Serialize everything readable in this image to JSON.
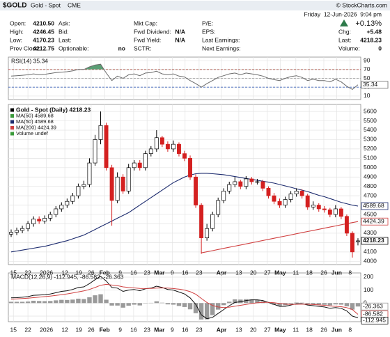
{
  "header": {
    "symbol": "$GOLD",
    "name": "Gold - Spot",
    "exchange": "CME",
    "copyright": "© StockCharts.com",
    "date": "Friday  12-Jun-2026  9:04 pm",
    "change_pct": "+0.13%",
    "columns": [
      [
        [
          "Open:",
          "4210.50"
        ],
        [
          "High:",
          "4246.45"
        ],
        [
          "Low:",
          "4170.23"
        ],
        [
          "Prev Close:",
          "4212.75"
        ]
      ],
      [
        [
          "Ask:"
        ],
        [
          "Bid:"
        ],
        [
          "Last:"
        ],
        [
          "Optionable:",
          "no"
        ]
      ],
      [
        [
          "Mkt Cap:"
        ],
        [
          "Fwd Dividend:",
          "N/A"
        ],
        [
          "Fwd Yield:",
          "N/A"
        ],
        [
          "SCTR:"
        ]
      ],
      [
        [
          "P/E:"
        ],
        [
          "EPS:"
        ],
        [
          "Last Earnings:"
        ],
        [
          "Next Earnings:"
        ]
      ]
    ],
    "quote": [
      [
        "Chg:",
        "+5.48"
      ],
      [
        "Last:",
        "4218.23"
      ],
      [
        "Volume:",
        "0"
      ]
    ]
  },
  "chart_data": [
    {
      "type": "line",
      "title": "RSI(14) 35.34",
      "ylim": [
        2,
        98
      ],
      "yticks": [
        90,
        70,
        50,
        30,
        10
      ],
      "grid": true,
      "fill_color": "#5a9e74",
      "reference_lines": [
        {
          "value": 70,
          "color": "#c24a4a"
        },
        {
          "value": 50,
          "color": "#999999"
        },
        {
          "value": 30,
          "color": "#3a62b8"
        }
      ],
      "series": [
        {
          "color": "#6a6a6a",
          "values": [
            55,
            56,
            57,
            58,
            60,
            58,
            59,
            61,
            63,
            64,
            65,
            67,
            70,
            70,
            76,
            80,
            82,
            62,
            45,
            55,
            50,
            58,
            60,
            56,
            62,
            63,
            66,
            60,
            58,
            60,
            55,
            53,
            45,
            38,
            30,
            38,
            45,
            52,
            56,
            60,
            62,
            58,
            62,
            60,
            58,
            55,
            50,
            47,
            45,
            50,
            54,
            56,
            52,
            45,
            48,
            45,
            45,
            42,
            48,
            42,
            32,
            25,
            35.34
          ]
        }
      ]
    },
    {
      "type": "candlestick",
      "xlim": [
        -0.5,
        62.5
      ],
      "ylim": [
        3965,
        5675
      ],
      "grid": true,
      "yticks": [
        4000,
        4100,
        4200,
        4300,
        4400,
        4500,
        4600,
        4700,
        4800,
        4900,
        5000,
        5100,
        5200,
        5300,
        5400,
        5500,
        5600
      ],
      "xticks": [
        {
          "value": 0.4,
          "label": "15"
        },
        {
          "value": 3.0,
          "label": "22"
        },
        {
          "value": 6.3,
          "label": "2026"
        },
        {
          "value": 9.6,
          "label": "12"
        },
        {
          "value": 12.1,
          "label": "19"
        },
        {
          "value": 14.3,
          "label": "26"
        },
        {
          "value": 16.7,
          "label": "Feb"
        },
        {
          "value": 19.5,
          "label": "9"
        },
        {
          "value": 21.9,
          "label": "16"
        },
        {
          "value": 24.3,
          "label": "23"
        },
        {
          "value": 26.5,
          "label": "Mar"
        },
        {
          "value": 28.8,
          "label": "9"
        },
        {
          "value": 31.1,
          "label": "16"
        },
        {
          "value": 33.6,
          "label": "23"
        },
        {
          "value": 37.6,
          "label": "Apr"
        },
        {
          "value": 40.7,
          "label": "13"
        },
        {
          "value": 43.3,
          "label": "20"
        },
        {
          "value": 45.8,
          "label": "27"
        },
        {
          "value": 48.1,
          "label": "May"
        },
        {
          "value": 50.9,
          "label": "11"
        },
        {
          "value": 53.3,
          "label": "18"
        },
        {
          "value": 55.9,
          "label": "26"
        },
        {
          "value": 58.2,
          "label": "Jun"
        },
        {
          "value": 60.6,
          "label": "8"
        }
      ],
      "legend": [
        {
          "name": "Gold - Spot (Daily) 4218.23",
          "color": "#000000"
        },
        {
          "name": "MA(50) 4589.68",
          "color": "#3a9a3a"
        },
        {
          "name": "MA(50) 4589.68",
          "color": "#1c2b6e"
        },
        {
          "name": "MA(200) 4424.39",
          "color": "#d04040"
        },
        {
          "name": "Volume undef",
          "color": "#3a9a3a"
        }
      ],
      "up_color": "#ffffff",
      "down_color": "#d42020",
      "open": [
        4290,
        4310,
        4330,
        4350,
        4400,
        4450,
        4430,
        4460,
        4500,
        4560,
        4600,
        4640,
        4700,
        4800,
        4820,
        5050,
        5300,
        5450,
        5000,
        4650,
        4900,
        4750,
        5000,
        5050,
        5000,
        5150,
        5200,
        5320,
        5250,
        5200,
        5250,
        5150,
        5100,
        4900,
        4600,
        4250,
        4350,
        4500,
        4650,
        4750,
        4820,
        4850,
        4800,
        4880,
        4850,
        4850,
        4780,
        4700,
        4640,
        4600,
        4660,
        4720,
        4750,
        4700,
        4580,
        4600,
        4560,
        4550,
        4500,
        4560,
        4480,
        4300,
        4210.5
      ],
      "high": [
        4340,
        4360,
        4380,
        4430,
        4480,
        4480,
        4490,
        4530,
        4590,
        4630,
        4670,
        4730,
        4830,
        4860,
        5100,
        5350,
        5600,
        5480,
        5030,
        4950,
        4930,
        5040,
        5080,
        5080,
        5180,
        5230,
        5400,
        5340,
        5280,
        5290,
        5270,
        5180,
        5130,
        4930,
        4620,
        4400,
        4530,
        4680,
        4780,
        4850,
        4900,
        4870,
        4910,
        4900,
        4880,
        4870,
        4800,
        4730,
        4670,
        4690,
        4750,
        4780,
        4770,
        4720,
        4640,
        4620,
        4590,
        4570,
        4600,
        4580,
        4500,
        4320,
        4246.45
      ],
      "low": [
        4260,
        4280,
        4300,
        4320,
        4370,
        4400,
        4400,
        4430,
        4470,
        4530,
        4570,
        4610,
        4670,
        4770,
        4790,
        5020,
        5250,
        4970,
        4380,
        4620,
        4720,
        4720,
        4970,
        4970,
        4970,
        5120,
        5170,
        5220,
        5170,
        5170,
        5120,
        5070,
        4870,
        4570,
        4080,
        4220,
        4320,
        4470,
        4620,
        4720,
        4790,
        4770,
        4770,
        4820,
        4820,
        4750,
        4670,
        4610,
        4570,
        4570,
        4630,
        4690,
        4670,
        4550,
        4550,
        4530,
        4520,
        4470,
        4470,
        4450,
        4270,
        4040,
        4170.23
      ],
      "close": [
        4310,
        4330,
        4350,
        4400,
        4450,
        4430,
        4460,
        4500,
        4560,
        4600,
        4640,
        4700,
        4800,
        4820,
        5050,
        5300,
        5450,
        5000,
        4650,
        4900,
        4750,
        5000,
        5050,
        5000,
        5150,
        5200,
        5320,
        5250,
        5200,
        5250,
        5150,
        5100,
        4900,
        4600,
        4250,
        4350,
        4500,
        4650,
        4750,
        4820,
        4850,
        4800,
        4880,
        4850,
        4850,
        4780,
        4700,
        4640,
        4600,
        4660,
        4720,
        4750,
        4700,
        4580,
        4600,
        4560,
        4550,
        4500,
        4560,
        4480,
        4300,
        4100,
        4218.23
      ],
      "lines": [
        {
          "color": "#1c2b6e",
          "values": [
            4100,
            4110,
            4120,
            4130,
            4140,
            4150,
            4160,
            4175,
            4190,
            4205,
            4220,
            4240,
            4260,
            4280,
            4310,
            4340,
            4370,
            4400,
            4430,
            4460,
            4490,
            4520,
            4560,
            4600,
            4640,
            4680,
            4720,
            4760,
            4800,
            4840,
            4870,
            4900,
            4920,
            4935,
            4940,
            4940,
            4935,
            4930,
            4925,
            4915,
            4905,
            4895,
            4885,
            4875,
            4865,
            4855,
            4845,
            4835,
            4820,
            4805,
            4790,
            4775,
            4760,
            4745,
            4725,
            4705,
            4690,
            4670,
            4650,
            4630,
            4615,
            4600,
            4589.68
          ]
        },
        {
          "color": "#d04040",
          "values": [
            null,
            null,
            null,
            null,
            null,
            null,
            null,
            null,
            null,
            null,
            null,
            null,
            null,
            null,
            null,
            null,
            null,
            null,
            null,
            null,
            null,
            null,
            null,
            null,
            null,
            null,
            null,
            null,
            null,
            null,
            null,
            null,
            null,
            null,
            4090,
            4102,
            4114,
            4126,
            4138,
            4150,
            4162,
            4174,
            4186,
            4198,
            4210,
            4222,
            4234,
            4246,
            4258,
            4270,
            4282,
            4294,
            4306,
            4318,
            4330,
            4342,
            4354,
            4366,
            4378,
            4390,
            4402,
            4413,
            4424.39
          ]
        }
      ]
    },
    {
      "type": "macd",
      "title": "MACD(12,26,9) -112.945, -86.582, -26.363",
      "xlim": [
        -0.5,
        62.5
      ],
      "ylim": [
        -143,
        232
      ],
      "yticks": [
        200,
        100,
        0,
        -100
      ],
      "grid": true,
      "xticks": [
        {
          "value": 0.4,
          "label": "15"
        },
        {
          "value": 3.0,
          "label": "22"
        },
        {
          "value": 6.3,
          "label": "2026"
        },
        {
          "value": 9.6,
          "label": "12"
        },
        {
          "value": 12.1,
          "label": "19"
        },
        {
          "value": 14.3,
          "label": "26"
        },
        {
          "value": 16.7,
          "label": "Feb"
        },
        {
          "value": 19.5,
          "label": "9"
        },
        {
          "value": 21.9,
          "label": "16"
        },
        {
          "value": 24.3,
          "label": "23"
        },
        {
          "value": 26.5,
          "label": "Mar"
        },
        {
          "value": 28.8,
          "label": "9"
        },
        {
          "value": 31.1,
          "label": "16"
        },
        {
          "value": 33.6,
          "label": "23"
        },
        {
          "value": 37.6,
          "label": "Apr"
        },
        {
          "value": 40.7,
          "label": "13"
        },
        {
          "value": 43.3,
          "label": "20"
        },
        {
          "value": 45.8,
          "label": "27"
        },
        {
          "value": 48.1,
          "label": "May"
        },
        {
          "value": 50.9,
          "label": "11"
        },
        {
          "value": 53.3,
          "label": "18"
        },
        {
          "value": 55.9,
          "label": "26"
        },
        {
          "value": 58.2,
          "label": "Jun"
        },
        {
          "value": 60.6,
          "label": "8"
        }
      ],
      "series": [
        {
          "kind": "bar",
          "color": "#9a9a9a",
          "values": [
            10,
            10,
            10,
            12,
            18,
            16,
            15,
            16,
            21,
            25,
            24,
            27,
            34,
            31,
            45,
            60,
            68,
            26,
            -19,
            -19,
            -35,
            -20,
            -12,
            -18,
            -2,
            2,
            14,
            3,
            -10,
            -12,
            -22,
            -30,
            -48,
            -78,
            -126,
            -125,
            -92,
            -50,
            -16,
            11,
            29,
            27,
            30,
            28,
            23,
            14,
            -1,
            -13,
            -22,
            -17,
            -5,
            4,
            3,
            -6,
            -9,
            -11,
            -13,
            -18,
            -10,
            -12,
            -25,
            -50,
            -26.363
          ]
        },
        {
          "kind": "line",
          "color": "#111111",
          "values": [
            40,
            42,
            45,
            50,
            60,
            62,
            65,
            70,
            80,
            90,
            95,
            105,
            120,
            125,
            150,
            180,
            205,
            170,
            120,
            115,
            90,
            100,
            105,
            95,
            110,
            115,
            130,
            120,
            105,
            100,
            85,
            70,
            40,
            -10,
            -90,
            -120,
            -110,
            -80,
            -50,
            -20,
            5,
            10,
            20,
            25,
            25,
            20,
            5,
            -10,
            -25,
            -25,
            -15,
            -5,
            -5,
            -15,
            -20,
            -25,
            -30,
            -40,
            -35,
            -40,
            -60,
            -100,
            -112.945
          ]
        },
        {
          "kind": "line",
          "color": "#d04040",
          "values": [
            30,
            32,
            35,
            38,
            42,
            46,
            50,
            54,
            59,
            65,
            71,
            78,
            86,
            94,
            105,
            120,
            137,
            144,
            139,
            134,
            125,
            120,
            117,
            113,
            112,
            113,
            116,
            117,
            115,
            112,
            107,
            100,
            88,
            68,
            36,
            5,
            -18,
            -30,
            -34,
            -31,
            -24,
            -17,
            -10,
            -3,
            2,
            6,
            6,
            3,
            -3,
            -8,
            -10,
            -9,
            -8,
            -9,
            -11,
            -14,
            -17,
            -22,
            -25,
            -28,
            -35,
            -50,
            -86.582
          ]
        }
      ]
    }
  ]
}
